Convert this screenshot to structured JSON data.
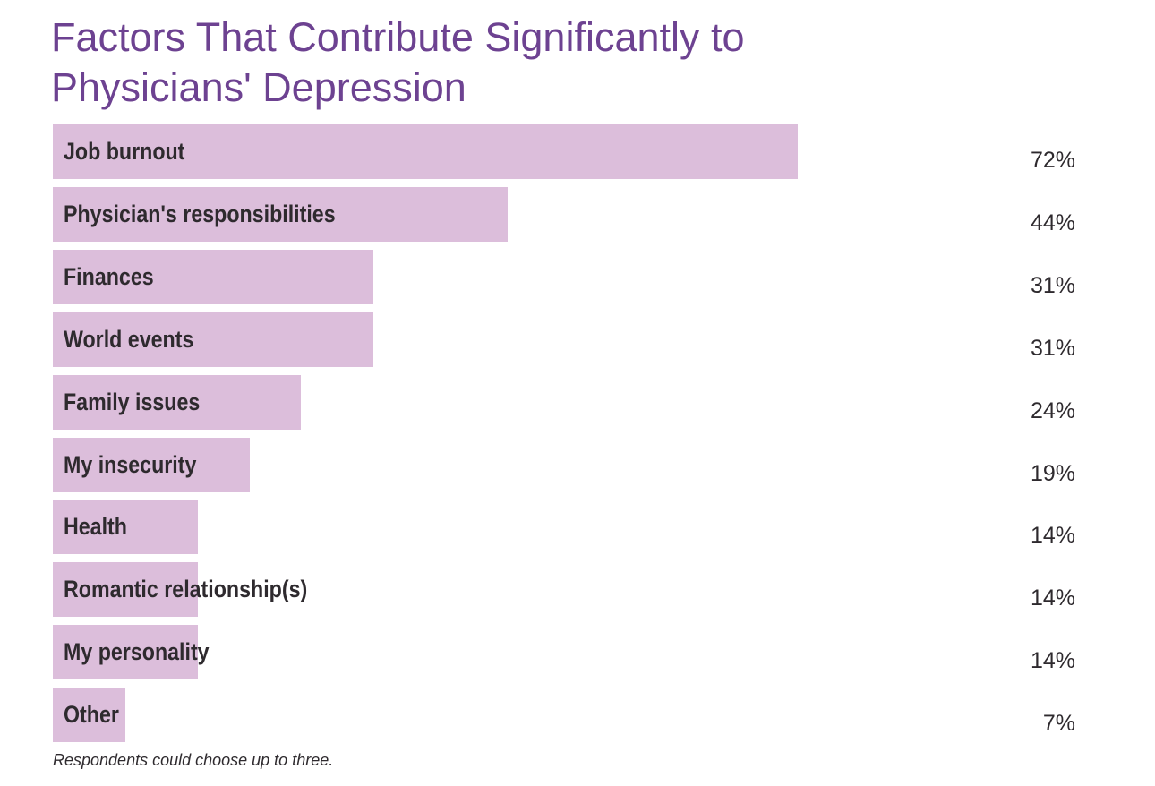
{
  "chart_data": {
    "type": "bar",
    "orientation": "horizontal",
    "title": "Factors That Contribute Significantly to Physicians' Depression",
    "categories": [
      "Job burnout",
      "Physician's responsibilities",
      "Finances",
      "World events",
      "Family issues",
      "My insecurity",
      "Health",
      "Romantic relationship(s)",
      "My personality",
      "Other"
    ],
    "values": [
      72,
      44,
      31,
      31,
      24,
      19,
      14,
      14,
      14,
      7
    ],
    "value_labels": [
      "72%",
      "44%",
      "31%",
      "31%",
      "24%",
      "19%",
      "14%",
      "14%",
      "14%",
      "7%"
    ],
    "xlim": [
      0,
      100
    ],
    "grid": false,
    "bar_color": "#dcbedb",
    "title_color": "#6d4291",
    "footnote": "Respondents could choose up to three."
  }
}
